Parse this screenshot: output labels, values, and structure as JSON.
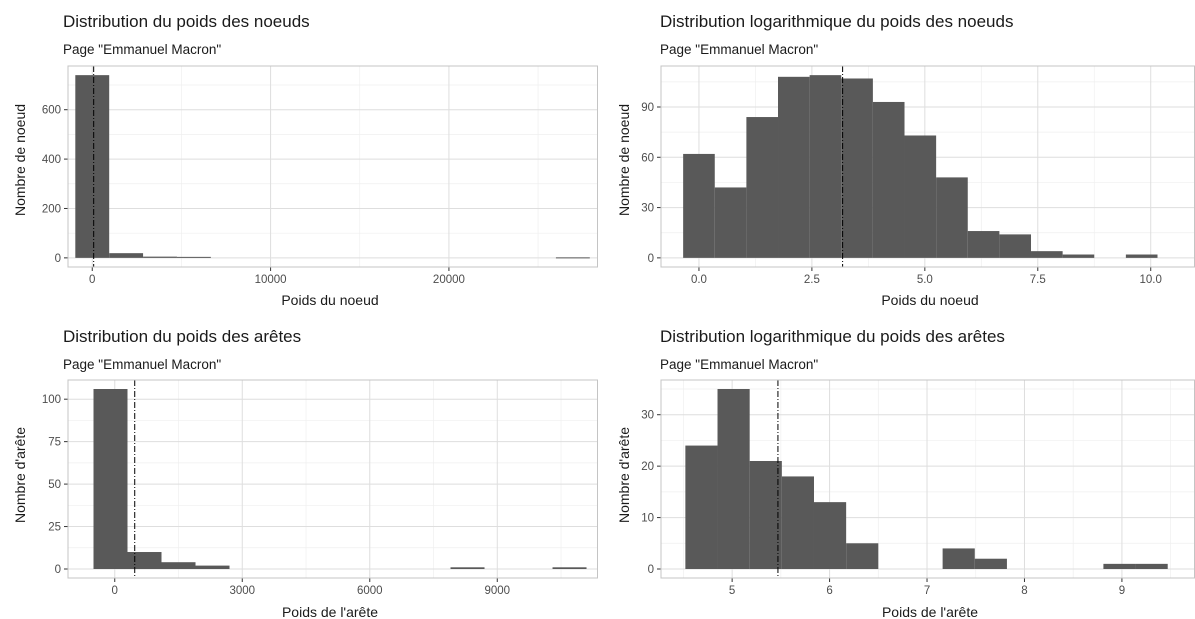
{
  "chart_data": [
    {
      "type": "bar",
      "title": "Distribution du poids des noeuds",
      "subtitle": "Page \"Emmanuel Macron\"",
      "xlabel": "Poids du noeud",
      "ylabel": "Nombre de noeud",
      "xlim": [
        -1360,
        28360
      ],
      "ylim": [
        -37,
        777
      ],
      "xticks": [
        0,
        10000,
        20000
      ],
      "xtick_labels": [
        "0",
        "10000",
        "20000"
      ],
      "yticks": [
        0,
        200,
        400,
        600
      ],
      "ytick_labels": [
        "0",
        "200",
        "400",
        "600"
      ],
      "bin_width": 1900,
      "bins": [
        {
          "xmin": -950,
          "xmax": 950,
          "count": 740
        },
        {
          "xmin": 950,
          "xmax": 2850,
          "count": 19
        },
        {
          "xmin": 2850,
          "xmax": 4750,
          "count": 5
        },
        {
          "xmin": 4750,
          "xmax": 6650,
          "count": 4
        },
        {
          "xmin": 26000,
          "xmax": 27900,
          "count": 2
        }
      ],
      "mean_line": 80,
      "grid": true
    },
    {
      "type": "bar",
      "title": "Distribution logarithmique du poids des noeuds",
      "subtitle": "Page \"Emmanuel Macron\"",
      "xlabel": "Poids du noeud",
      "ylabel": "Nombre de noeud",
      "xlim": [
        -0.84,
        10.98
      ],
      "ylim": [
        -5.45,
        114.45
      ],
      "xticks": [
        0,
        2.5,
        5,
        7.5,
        10
      ],
      "xtick_labels": [
        "0.0",
        "2.5",
        "5.0",
        "7.5",
        "10.0"
      ],
      "yticks": [
        0,
        30,
        60,
        90
      ],
      "ytick_labels": [
        "0",
        "30",
        "60",
        "90"
      ],
      "bin_width": 0.7,
      "bins": [
        {
          "xmin": -0.35,
          "xmax": 0.35,
          "count": 62
        },
        {
          "xmin": 0.35,
          "xmax": 1.05,
          "count": 42
        },
        {
          "xmin": 1.05,
          "xmax": 1.75,
          "count": 84
        },
        {
          "xmin": 1.75,
          "xmax": 2.45,
          "count": 108
        },
        {
          "xmin": 2.45,
          "xmax": 3.15,
          "count": 109
        },
        {
          "xmin": 3.15,
          "xmax": 3.85,
          "count": 107
        },
        {
          "xmin": 3.85,
          "xmax": 4.55,
          "count": 93
        },
        {
          "xmin": 4.55,
          "xmax": 5.25,
          "count": 73
        },
        {
          "xmin": 5.25,
          "xmax": 5.95,
          "count": 48
        },
        {
          "xmin": 5.95,
          "xmax": 6.65,
          "count": 16
        },
        {
          "xmin": 6.65,
          "xmax": 7.35,
          "count": 14
        },
        {
          "xmin": 7.35,
          "xmax": 8.05,
          "count": 4
        },
        {
          "xmin": 8.05,
          "xmax": 8.75,
          "count": 2
        },
        {
          "xmin": 9.45,
          "xmax": 10.15,
          "count": 2
        }
      ],
      "mean_line": 3.18,
      "grid": true
    },
    {
      "type": "bar",
      "title": "Distribution du poids des arêtes",
      "subtitle": "Page \"Emmanuel Macron\"",
      "xlabel": "Poids de l'arête",
      "ylabel": "Nombre d'arête",
      "xlim": [
        -1100,
        11370
      ],
      "ylim": [
        -5.3,
        111.3
      ],
      "xticks": [
        0,
        3000,
        6000,
        9000
      ],
      "xtick_labels": [
        "0",
        "3000",
        "6000",
        "9000"
      ],
      "yticks": [
        0,
        25,
        50,
        75,
        100
      ],
      "ytick_labels": [
        "0",
        "25",
        "50",
        "75",
        "100"
      ],
      "bin_width": 800,
      "bins": [
        {
          "xmin": -500,
          "xmax": 300,
          "count": 106
        },
        {
          "xmin": 300,
          "xmax": 1100,
          "count": 10
        },
        {
          "xmin": 1100,
          "xmax": 1900,
          "count": 4
        },
        {
          "xmin": 1900,
          "xmax": 2700,
          "count": 2
        },
        {
          "xmin": 7900,
          "xmax": 8700,
          "count": 1
        },
        {
          "xmin": 10300,
          "xmax": 11100,
          "count": 1
        }
      ],
      "mean_line": 470,
      "grid": true
    },
    {
      "type": "bar",
      "title": "Distribution logarithmique du poids des arêtes",
      "subtitle": "Page \"Emmanuel Macron\"",
      "xlabel": "Poids de l'arête",
      "ylabel": "Nombre d'arête",
      "xlim": [
        4.27,
        9.75
      ],
      "ylim": [
        -1.75,
        36.75
      ],
      "xticks": [
        5,
        6,
        7,
        8,
        9
      ],
      "xtick_labels": [
        "5",
        "6",
        "7",
        "8",
        "9"
      ],
      "yticks": [
        0,
        10,
        20,
        30
      ],
      "ytick_labels": [
        "0",
        "10",
        "20",
        "30"
      ],
      "bin_width": 0.33,
      "bins": [
        {
          "xmin": 4.52,
          "xmax": 4.85,
          "count": 24
        },
        {
          "xmin": 4.85,
          "xmax": 5.18,
          "count": 35
        },
        {
          "xmin": 5.18,
          "xmax": 5.51,
          "count": 21
        },
        {
          "xmin": 5.51,
          "xmax": 5.84,
          "count": 18
        },
        {
          "xmin": 5.84,
          "xmax": 6.17,
          "count": 13
        },
        {
          "xmin": 6.17,
          "xmax": 6.5,
          "count": 5
        },
        {
          "xmin": 7.16,
          "xmax": 7.49,
          "count": 4
        },
        {
          "xmin": 7.49,
          "xmax": 7.82,
          "count": 2
        },
        {
          "xmin": 8.81,
          "xmax": 9.14,
          "count": 1
        },
        {
          "xmin": 9.14,
          "xmax": 9.47,
          "count": 1
        }
      ],
      "mean_line": 5.47,
      "grid": true
    }
  ]
}
